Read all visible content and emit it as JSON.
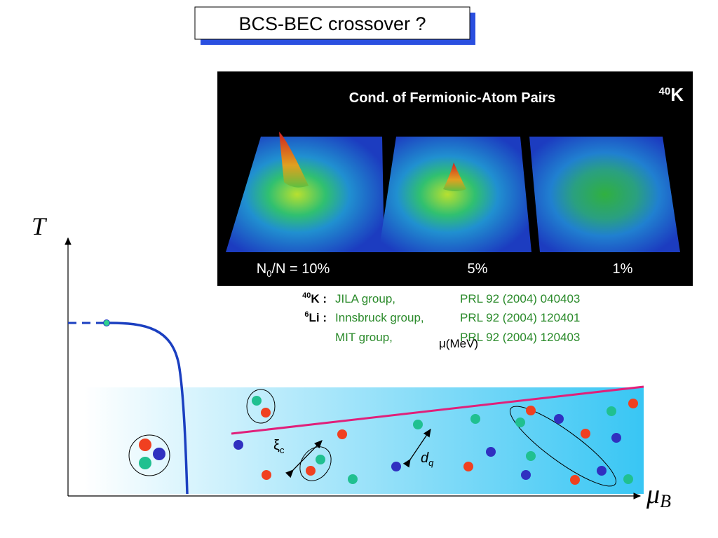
{
  "header": {
    "title": "BCS-BEC crossover ?"
  },
  "image": {
    "title": "Cond. of Fermionic-Atom Pairs",
    "isotope": {
      "sup": "40",
      "symbol": "K"
    },
    "labels": [
      {
        "main": "N",
        "sub": "0",
        "rest": "/N = 10%"
      },
      {
        "main": "5%"
      },
      {
        "main": "1%"
      }
    ]
  },
  "references": {
    "rows": [
      {
        "sup": "40",
        "element": "K :",
        "group": "JILA group,",
        "ref": "PRL 92 (2004) 040403"
      },
      {
        "sup": "6",
        "element": "Li :",
        "group": "Innsbruck group,",
        "ref": "PRL 92 (2004) 120401"
      },
      {
        "group": "MIT group,",
        "ref": "PRL 92 (2004) 120403"
      }
    ],
    "overlay": "μ(MeV)"
  },
  "diagram": {
    "axis_y": "T",
    "axis_x": {
      "main": "μ",
      "sub": "B"
    },
    "coherence": {
      "main": "ξ",
      "sub": "c"
    },
    "distance": {
      "main": "d",
      "sub": "q"
    }
  }
}
